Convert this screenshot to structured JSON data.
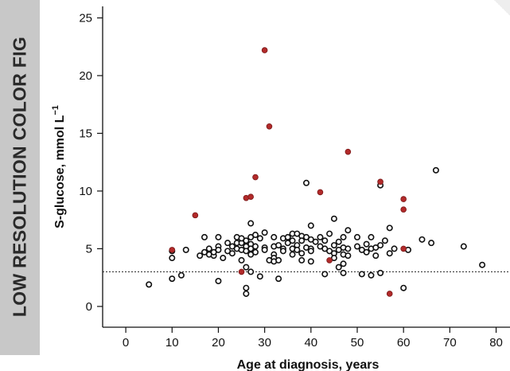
{
  "watermark": "LOW RESOLUTION COLOR FIG",
  "chart_data": {
    "type": "scatter",
    "title": "",
    "xlabel": "Age at diagnosis, years",
    "ylabel_main": "S-glucose, mmol L",
    "ylabel_sup": "−1",
    "xlim": [
      -5,
      83
    ],
    "ylim": [
      -1.8,
      26
    ],
    "xticks": [
      0,
      10,
      20,
      30,
      40,
      50,
      60,
      70,
      80
    ],
    "yticks": [
      0,
      5,
      10,
      15,
      20,
      25
    ],
    "reference_line": {
      "y": 3.0,
      "style": "dotted"
    },
    "grid": false,
    "series": [
      {
        "marker": "open-circle",
        "color": "#111111",
        "points": [
          [
            5,
            1.9
          ],
          [
            10,
            2.4
          ],
          [
            10,
            4.2
          ],
          [
            10,
            4.8
          ],
          [
            12,
            2.7
          ],
          [
            13,
            4.9
          ],
          [
            16,
            4.4
          ],
          [
            17,
            6.0
          ],
          [
            17,
            4.7
          ],
          [
            18,
            5.0
          ],
          [
            18,
            4.5
          ],
          [
            19,
            4.4
          ],
          [
            19,
            4.7
          ],
          [
            20,
            6.0
          ],
          [
            20,
            5.2
          ],
          [
            20,
            4.9
          ],
          [
            20,
            2.2
          ],
          [
            21,
            4.2
          ],
          [
            22,
            5.5
          ],
          [
            22,
            4.8
          ],
          [
            23,
            4.6
          ],
          [
            23,
            5.2
          ],
          [
            24,
            6.0
          ],
          [
            24,
            5.5
          ],
          [
            24,
            5.0
          ],
          [
            25,
            4.9
          ],
          [
            25,
            4.0
          ],
          [
            25,
            5.5
          ],
          [
            25,
            5.9
          ],
          [
            26,
            1.1
          ],
          [
            26,
            1.6
          ],
          [
            26,
            5.7
          ],
          [
            26,
            5.2
          ],
          [
            26,
            4.8
          ],
          [
            26,
            3.4
          ],
          [
            27,
            7.2
          ],
          [
            27,
            6.0
          ],
          [
            27,
            5.4
          ],
          [
            27,
            5.0
          ],
          [
            27,
            4.5
          ],
          [
            27,
            3.0
          ],
          [
            28,
            6.2
          ],
          [
            28,
            5.2
          ],
          [
            28,
            4.7
          ],
          [
            29,
            2.6
          ],
          [
            29,
            5.9
          ],
          [
            30,
            6.4
          ],
          [
            30,
            5.1
          ],
          [
            30,
            4.9
          ],
          [
            31,
            4.0
          ],
          [
            32,
            6.0
          ],
          [
            32,
            5.2
          ],
          [
            32,
            4.5
          ],
          [
            32,
            4.2
          ],
          [
            32,
            3.9
          ],
          [
            33,
            2.4
          ],
          [
            33,
            5.3
          ],
          [
            33,
            4.0
          ],
          [
            34,
            5.9
          ],
          [
            34,
            5.0
          ],
          [
            34,
            4.8
          ],
          [
            35,
            6.0
          ],
          [
            35,
            5.5
          ],
          [
            36,
            6.3
          ],
          [
            36,
            5.7
          ],
          [
            36,
            5.0
          ],
          [
            36,
            4.5
          ],
          [
            37,
            6.3
          ],
          [
            37,
            5.3
          ],
          [
            37,
            4.9
          ],
          [
            38,
            6.1
          ],
          [
            38,
            5.7
          ],
          [
            38,
            4.6
          ],
          [
            38,
            4.0
          ],
          [
            39,
            10.7
          ],
          [
            39,
            6.0
          ],
          [
            39,
            5.1
          ],
          [
            40,
            7.0
          ],
          [
            40,
            5.8
          ],
          [
            40,
            5.0
          ],
          [
            40,
            4.8
          ],
          [
            40,
            3.9
          ],
          [
            41,
            5.6
          ],
          [
            42,
            6.0
          ],
          [
            42,
            5.2
          ],
          [
            43,
            5.7
          ],
          [
            43,
            5.0
          ],
          [
            43,
            2.8
          ],
          [
            44,
            6.3
          ],
          [
            44,
            4.8
          ],
          [
            45,
            7.6
          ],
          [
            45,
            5.3
          ],
          [
            45,
            4.6
          ],
          [
            45,
            4.2
          ],
          [
            46,
            5.6
          ],
          [
            46,
            4.9
          ],
          [
            46,
            3.4
          ],
          [
            47,
            6.0
          ],
          [
            47,
            5.1
          ],
          [
            47,
            4.5
          ],
          [
            47,
            3.7
          ],
          [
            47,
            2.9
          ],
          [
            48,
            6.6
          ],
          [
            48,
            5.0
          ],
          [
            48,
            4.4
          ],
          [
            50,
            6.0
          ],
          [
            50,
            5.2
          ],
          [
            51,
            2.8
          ],
          [
            51,
            4.9
          ],
          [
            52,
            5.4
          ],
          [
            52,
            4.7
          ],
          [
            53,
            2.7
          ],
          [
            53,
            6.0
          ],
          [
            53,
            5.0
          ],
          [
            54,
            4.4
          ],
          [
            54,
            5.1
          ],
          [
            55,
            10.5
          ],
          [
            55,
            5.3
          ],
          [
            55,
            2.9
          ],
          [
            56,
            5.7
          ],
          [
            57,
            6.8
          ],
          [
            57,
            4.6
          ],
          [
            58,
            5.0
          ],
          [
            60,
            1.6
          ],
          [
            61,
            4.9
          ],
          [
            64,
            5.8
          ],
          [
            66,
            5.5
          ],
          [
            67,
            11.8
          ],
          [
            73,
            5.2
          ],
          [
            77,
            3.6
          ]
        ]
      },
      {
        "marker": "filled-circle",
        "color": "#b22a2a",
        "points": [
          [
            10,
            4.9
          ],
          [
            15,
            7.9
          ],
          [
            25,
            3.0
          ],
          [
            26,
            9.4
          ],
          [
            27,
            9.5
          ],
          [
            28,
            11.2
          ],
          [
            30,
            22.2
          ],
          [
            31,
            15.6
          ],
          [
            42,
            9.9
          ],
          [
            44,
            4.0
          ],
          [
            48,
            13.4
          ],
          [
            55,
            10.8
          ],
          [
            57,
            1.1
          ],
          [
            60,
            9.3
          ],
          [
            60,
            8.4
          ],
          [
            60,
            5.0
          ]
        ]
      }
    ]
  }
}
